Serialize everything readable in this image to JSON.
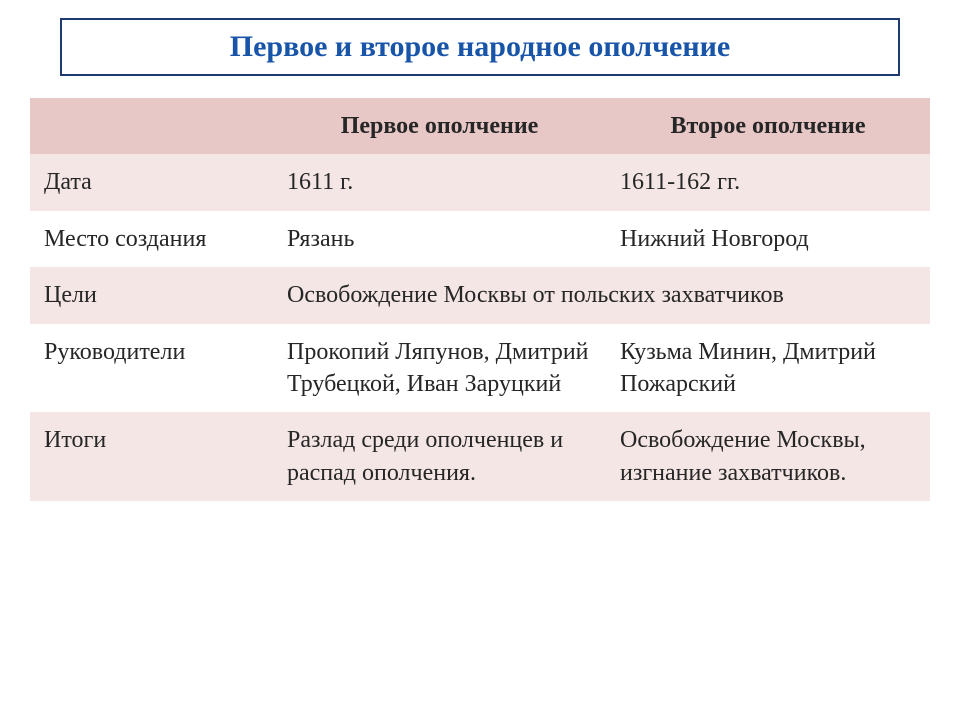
{
  "title": "Первое и второе народное ополчение",
  "colors": {
    "title_text": "#1855a8",
    "title_border": "#1f3a6e",
    "header_bg": "#e7c8c6",
    "band_odd": "#f4e6e5",
    "band_even": "#ffffff",
    "text": "#262626",
    "page_bg": "#ffffff"
  },
  "typography": {
    "family": "Times New Roman",
    "title_fontsize_pt": 22,
    "cell_fontsize_pt": 18,
    "header_weight": "bold"
  },
  "columns": [
    {
      "key": "label",
      "header": "",
      "width_pct": 27
    },
    {
      "key": "first",
      "header": "Первое ополчение",
      "width_pct": 37
    },
    {
      "key": "second",
      "header": "Второе ополчение",
      "width_pct": 36
    }
  ],
  "rows": {
    "date": {
      "label": "Дата",
      "first": "1611 г.",
      "second": "1611-162 гг."
    },
    "place": {
      "label": "Место создания",
      "first": "Рязань",
      "second": "Нижний Новгород"
    },
    "goals": {
      "label": "Цели",
      "merged": "Освобождение Москвы от польских захватчиков"
    },
    "leaders": {
      "label": "Руководители",
      "first": "Прокопий Ляпунов, Дмитрий Трубецкой, Иван Заруцкий",
      "second": "Кузьма Минин, Дмитрий Пожарский"
    },
    "results": {
      "label": "Итоги",
      "first": "Разлад среди ополченцев и распад ополчения.",
      "second": "Освобождение Москвы, изгнание захватчиков."
    }
  },
  "row_order": [
    "date",
    "place",
    "goals",
    "leaders",
    "results"
  ],
  "row_banding": {
    "date": "odd",
    "place": "even",
    "goals": "odd",
    "leaders": "even",
    "results": "odd"
  }
}
